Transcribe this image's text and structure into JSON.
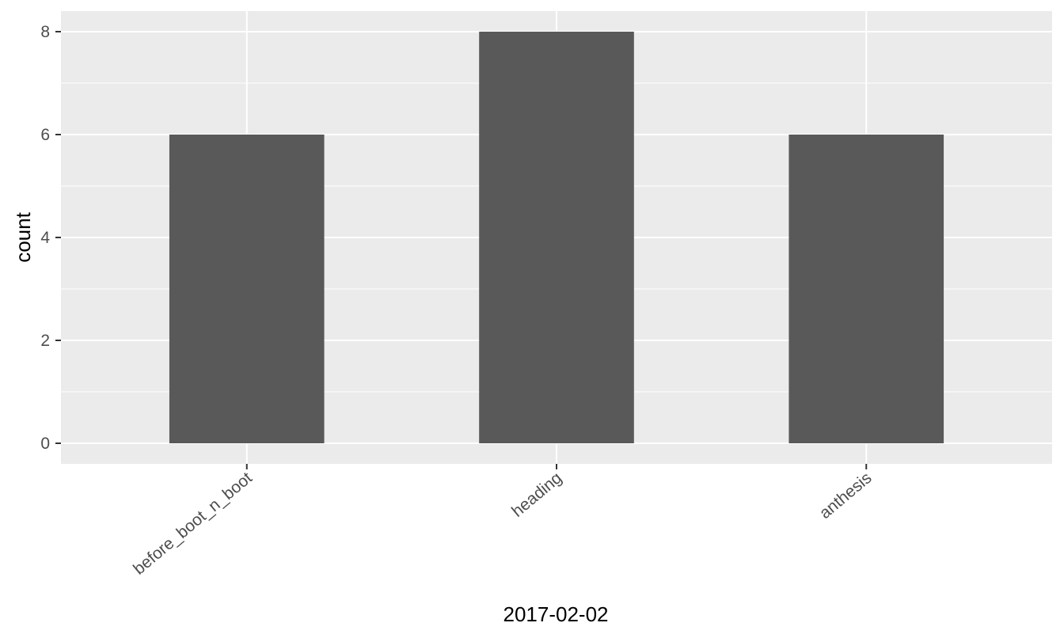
{
  "chart_data": {
    "type": "bar",
    "categories": [
      "before_boot_n_boot",
      "heading",
      "anthesis"
    ],
    "values": [
      6,
      8,
      6
    ],
    "title": "",
    "xlabel": "2017-02-02",
    "ylabel": "count",
    "ylim": [
      -0.4,
      8.4
    ],
    "yticks": [
      0,
      2,
      4,
      6,
      8
    ],
    "grid": true,
    "legend": "none",
    "colors": {
      "panel_background": "#EBEBEB",
      "grid": "#FFFFFF",
      "bar": "#595959",
      "tick_label": "#4D4D4D",
      "axis_title": "#000000"
    }
  }
}
